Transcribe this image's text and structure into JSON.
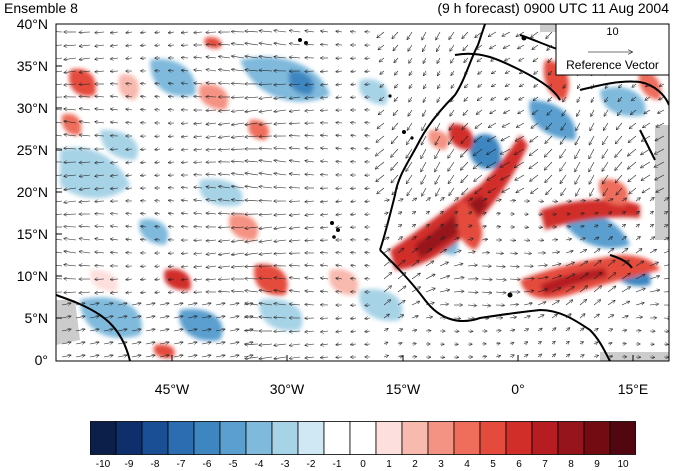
{
  "title_left": "Ensemble 8",
  "title_right": "(9 h forecast) 0900 UTC 11 Aug 2004",
  "y_ticks": [
    "40°N",
    "35°N",
    "30°N",
    "25°N",
    "20°N",
    "15°N",
    "10°N",
    "5°N",
    "0°"
  ],
  "x_ticks": [
    "45°W",
    "30°W",
    "15°W",
    "0°",
    "15°E"
  ],
  "reference_vector": {
    "value": "10",
    "label": "Reference Vector"
  },
  "colorbar": {
    "labels": [
      "-10",
      "-9",
      "-8",
      "-7",
      "-6",
      "-5",
      "-4",
      "-3",
      "-2",
      "-1",
      "0",
      "1",
      "2",
      "3",
      "4",
      "5",
      "6",
      "7",
      "8",
      "9",
      "10"
    ],
    "colors": [
      "#0b1f4a",
      "#0e2f6b",
      "#1b4f95",
      "#2c6cb0",
      "#3d86c0",
      "#5a9fcf",
      "#7fb9db",
      "#a7d3e6",
      "#cfe8f3",
      "#ffffff",
      "#ffffff",
      "#fde0de",
      "#f8b9af",
      "#f49383",
      "#ee6d5b",
      "#e44b3c",
      "#d12e2a",
      "#b51d22",
      "#96141c",
      "#730b13",
      "#520610"
    ]
  },
  "colors": {
    "land_coast": "#000000",
    "no_data": "#cccccc"
  }
}
